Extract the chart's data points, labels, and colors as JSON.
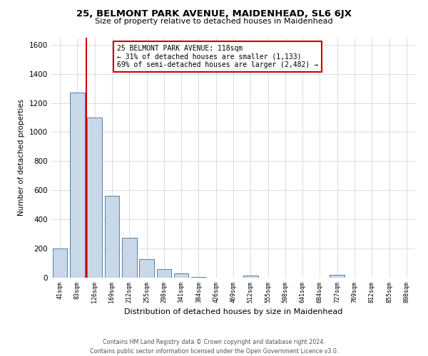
{
  "title": "25, BELMONT PARK AVENUE, MAIDENHEAD, SL6 6JX",
  "subtitle": "Size of property relative to detached houses in Maidenhead",
  "xlabel": "Distribution of detached houses by size in Maidenhead",
  "ylabel": "Number of detached properties",
  "bar_labels": [
    "41sqm",
    "83sqm",
    "126sqm",
    "169sqm",
    "212sqm",
    "255sqm",
    "298sqm",
    "341sqm",
    "384sqm",
    "426sqm",
    "469sqm",
    "512sqm",
    "555sqm",
    "598sqm",
    "641sqm",
    "684sqm",
    "727sqm",
    "769sqm",
    "812sqm",
    "855sqm",
    "898sqm"
  ],
  "bar_values": [
    200,
    1270,
    1100,
    560,
    275,
    125,
    60,
    30,
    5,
    0,
    0,
    15,
    0,
    0,
    0,
    0,
    18,
    0,
    0,
    0,
    0
  ],
  "bar_color": "#c8d8e8",
  "bar_edge_color": "#5080a8",
  "ylim": [
    0,
    1650
  ],
  "yticks": [
    0,
    200,
    400,
    600,
    800,
    1000,
    1200,
    1400,
    1600
  ],
  "vline_color": "#cc0000",
  "annotation_title": "25 BELMONT PARK AVENUE: 118sqm",
  "annotation_line1": "← 31% of detached houses are smaller (1,133)",
  "annotation_line2": "69% of semi-detached houses are larger (2,482) →",
  "annotation_box_color": "#ffffff",
  "annotation_box_edge": "#cc0000",
  "footer_line1": "Contains HM Land Registry data © Crown copyright and database right 2024.",
  "footer_line2": "Contains public sector information licensed under the Open Government Licence v3.0.",
  "background_color": "#ffffff",
  "grid_color": "#d0d8e0"
}
